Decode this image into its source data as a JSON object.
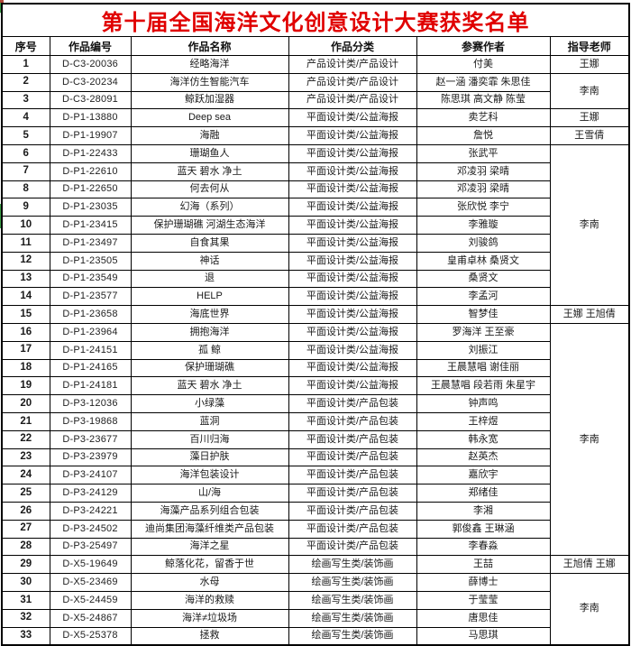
{
  "title": "第十届全国海洋文化创意设计大赛获奖名单",
  "colors": {
    "title_text": "#e00000",
    "grid_border": "#000000",
    "background": "#ffffff",
    "artifact_green": "#3a9d46",
    "artifact_red": "#b2493a"
  },
  "columns": [
    {
      "label": "序号"
    },
    {
      "label": "作品编号"
    },
    {
      "label": "作品名称"
    },
    {
      "label": "作品分类"
    },
    {
      "label": "参赛作者"
    },
    {
      "label": "指导老师"
    }
  ],
  "rows": [
    {
      "no": "1",
      "code": "D-C3-20036",
      "name": "经略海洋",
      "category": "产品设计类/产品设计",
      "authors": "付美"
    },
    {
      "no": "2",
      "code": "D-C3-20234",
      "name": "海洋仿生智能汽车",
      "category": "产品设计类/产品设计",
      "authors": "赵一涵 潘奕霏 朱思佳"
    },
    {
      "no": "3",
      "code": "D-C3-28091",
      "name": "鲸跃加湿器",
      "category": "产品设计类/产品设计",
      "authors": "陈思琪 高文静 陈莹"
    },
    {
      "no": "4",
      "code": "D-P1-13880",
      "name": "Deep sea",
      "category": "平面设计类/公益海报",
      "authors": "卖艺科"
    },
    {
      "no": "5",
      "code": "D-P1-19907",
      "name": "海融",
      "category": "平面设计类/公益海报",
      "authors": "詹悦"
    },
    {
      "no": "6",
      "code": "D-P1-22433",
      "name": "珊瑚鱼人",
      "category": "平面设计类/公益海报",
      "authors": "张武平"
    },
    {
      "no": "7",
      "code": "D-P1-22610",
      "name": "蓝天 碧水 净土",
      "category": "平面设计类/公益海报",
      "authors": "邓凌羽 梁晴"
    },
    {
      "no": "8",
      "code": "D-P1-22650",
      "name": "何去何从",
      "category": "平面设计类/公益海报",
      "authors": "邓凌羽 梁晴"
    },
    {
      "no": "9",
      "code": "D-P1-23035",
      "name": "幻海（系列）",
      "category": "平面设计类/公益海报",
      "authors": "张欣悦 李宁"
    },
    {
      "no": "10",
      "code": "D-P1-23415",
      "name": "保护珊瑚礁 河湖生态海洋",
      "category": "平面设计类/公益海报",
      "authors": "李雅璇"
    },
    {
      "no": "11",
      "code": "D-P1-23497",
      "name": "自食其果",
      "category": "平面设计类/公益海报",
      "authors": "刘骏鸽"
    },
    {
      "no": "12",
      "code": "D-P1-23505",
      "name": "神话",
      "category": "平面设计类/公益海报",
      "authors": "皇甫卓林 桑贤文"
    },
    {
      "no": "13",
      "code": "D-P1-23549",
      "name": "退",
      "category": "平面设计类/公益海报",
      "authors": "桑贤文"
    },
    {
      "no": "14",
      "code": "D-P1-23577",
      "name": "HELP",
      "category": "平面设计类/公益海报",
      "authors": "李孟河"
    },
    {
      "no": "15",
      "code": "D-P1-23658",
      "name": "海底世界",
      "category": "平面设计类/公益海报",
      "authors": "智梦佳"
    },
    {
      "no": "16",
      "code": "D-P1-23964",
      "name": "拥抱海洋",
      "category": "平面设计类/公益海报",
      "authors": "罗海洋 王至豪"
    },
    {
      "no": "17",
      "code": "D-P1-24151",
      "name": "孤 鲸",
      "category": "平面设计类/公益海报",
      "authors": "刘振江"
    },
    {
      "no": "18",
      "code": "D-P1-24165",
      "name": "保护珊瑚礁",
      "category": "平面设计类/公益海报",
      "authors": "王晨慧唱 谢佳丽"
    },
    {
      "no": "19",
      "code": "D-P1-24181",
      "name": "蓝天 碧水 净土",
      "category": "平面设计类/公益海报",
      "authors": "王晨慧唱 段若雨 朱星宇"
    },
    {
      "no": "20",
      "code": "D-P3-12036",
      "name": "小绿藻",
      "category": "平面设计类/产品包装",
      "authors": "钟声鸣"
    },
    {
      "no": "21",
      "code": "D-P3-19868",
      "name": "蓝洞",
      "category": "平面设计类/产品包装",
      "authors": "王梓煜"
    },
    {
      "no": "22",
      "code": "D-P3-23677",
      "name": "百川归海",
      "category": "平面设计类/产品包装",
      "authors": "韩永宽"
    },
    {
      "no": "23",
      "code": "D-P3-23979",
      "name": "藻日护肤",
      "category": "平面设计类/产品包装",
      "authors": "赵英杰"
    },
    {
      "no": "24",
      "code": "D-P3-24107",
      "name": "海洋包装设计",
      "category": "平面设计类/产品包装",
      "authors": "嘉欣宇"
    },
    {
      "no": "25",
      "code": "D-P3-24129",
      "name": "山/海",
      "category": "平面设计类/产品包装",
      "authors": "郑绪佳"
    },
    {
      "no": "26",
      "code": "D-P3-24221",
      "name": "海藻产品系列组合包装",
      "category": "平面设计类/产品包装",
      "authors": "李湘"
    },
    {
      "no": "27",
      "code": "D-P3-24502",
      "name": "迪尚集团海藻纤维类产品包装",
      "category": "平面设计类/产品包装",
      "authors": "郭俊鑫 王琳涵"
    },
    {
      "no": "28",
      "code": "D-P3-25497",
      "name": "海洋之星",
      "category": "平面设计类/产品包装",
      "authors": "李春淼"
    },
    {
      "no": "29",
      "code": "D-X5-19649",
      "name": "鲸落化花，留香于世",
      "category": "绘画写生类/装饰画",
      "authors": "王喆"
    },
    {
      "no": "30",
      "code": "D-X5-23469",
      "name": "水母",
      "category": "绘画写生类/装饰画",
      "authors": "薛博士"
    },
    {
      "no": "31",
      "code": "D-X5-24459",
      "name": "海洋的救赎",
      "category": "绘画写生类/装饰画",
      "authors": "于莹莹"
    },
    {
      "no": "32",
      "code": "D-X5-24867",
      "name": "海洋≠垃圾场",
      "category": "绘画写生类/装饰画",
      "authors": "唐思佳"
    },
    {
      "no": "33",
      "code": "D-X5-25378",
      "name": "拯救",
      "category": "绘画写生类/装饰画",
      "authors": "马思琪"
    }
  ],
  "teachers": [
    {
      "start": 1,
      "span": 1,
      "name": "王娜"
    },
    {
      "start": 2,
      "span": 2,
      "name": "李南"
    },
    {
      "start": 4,
      "span": 1,
      "name": "王娜"
    },
    {
      "start": 5,
      "span": 1,
      "name": "王雪倩"
    },
    {
      "start": 6,
      "span": 9,
      "name": "李南"
    },
    {
      "start": 15,
      "span": 1,
      "name": "王娜 王旭倩"
    },
    {
      "start": 16,
      "span": 13,
      "name": "李南"
    },
    {
      "start": 29,
      "span": 1,
      "name": "王旭倩 王娜"
    },
    {
      "start": 30,
      "span": 4,
      "name": "李南"
    }
  ]
}
